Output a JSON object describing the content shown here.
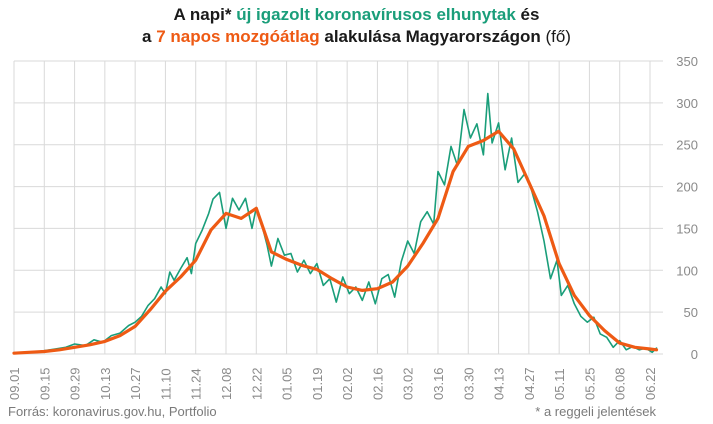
{
  "title": {
    "line1_a": "A napi* ",
    "line1_b": "új igazolt koronavírusos elhunytak",
    "line1_c": " és",
    "line2_a": "a ",
    "line2_b": "7 napos mozgóátlag",
    "line2_c": " alakulása Magyarországon",
    "line2_d": " (fő)"
  },
  "footer": {
    "source": "Forrás: koronavirus.gov.hu, Portfolio",
    "note": "* a reggeli jelentések"
  },
  "colors": {
    "daily": "#1a9e7a",
    "avg": "#ee5a14",
    "grid": "#d9d9d9",
    "tick": "#8a8a8a"
  },
  "chart_data": {
    "type": "line",
    "x_start": "2020-09-01",
    "x_end": "2021-06-25",
    "x_tick_labels": [
      "09.01",
      "09.15",
      "09.29",
      "10.13",
      "10.27",
      "11.10",
      "11.24",
      "12.08",
      "12.22",
      "01.05",
      "01.19",
      "02.02",
      "02.16",
      "03.02",
      "03.16",
      "03.30",
      "04.13",
      "04.27",
      "05.11",
      "05.25",
      "06.08",
      "06.22"
    ],
    "ylim": [
      0,
      350
    ],
    "y_ticks": [
      0,
      50,
      100,
      150,
      200,
      250,
      300,
      350
    ],
    "y_axis_side": "right",
    "grid": true,
    "series": [
      {
        "name": "új igazolt koronavírusos elhunytak",
        "style": "thin",
        "points": [
          [
            "2020-09-01",
            1
          ],
          [
            "2020-09-05",
            2
          ],
          [
            "2020-09-10",
            2
          ],
          [
            "2020-09-15",
            4
          ],
          [
            "2020-09-20",
            6
          ],
          [
            "2020-09-25",
            8
          ],
          [
            "2020-09-29",
            12
          ],
          [
            "2020-10-04",
            10
          ],
          [
            "2020-10-08",
            17
          ],
          [
            "2020-10-12",
            14
          ],
          [
            "2020-10-16",
            22
          ],
          [
            "2020-10-20",
            25
          ],
          [
            "2020-10-24",
            34
          ],
          [
            "2020-10-27",
            38
          ],
          [
            "2020-10-30",
            45
          ],
          [
            "2020-11-02",
            58
          ],
          [
            "2020-11-05",
            66
          ],
          [
            "2020-11-08",
            80
          ],
          [
            "2020-11-10",
            72
          ],
          [
            "2020-11-12",
            98
          ],
          [
            "2020-11-14",
            88
          ],
          [
            "2020-11-17",
            102
          ],
          [
            "2020-11-20",
            115
          ],
          [
            "2020-11-22",
            96
          ],
          [
            "2020-11-24",
            132
          ],
          [
            "2020-11-27",
            148
          ],
          [
            "2020-11-30",
            168
          ],
          [
            "2020-12-02",
            185
          ],
          [
            "2020-12-05",
            193
          ],
          [
            "2020-12-08",
            150
          ],
          [
            "2020-12-11",
            186
          ],
          [
            "2020-12-14",
            172
          ],
          [
            "2020-12-17",
            186
          ],
          [
            "2020-12-20",
            150
          ],
          [
            "2020-12-22",
            175
          ],
          [
            "2020-12-24",
            160
          ],
          [
            "2020-12-27",
            130
          ],
          [
            "2020-12-29",
            105
          ],
          [
            "2021-01-01",
            138
          ],
          [
            "2021-01-04",
            118
          ],
          [
            "2021-01-07",
            120
          ],
          [
            "2021-01-10",
            98
          ],
          [
            "2021-01-13",
            112
          ],
          [
            "2021-01-16",
            96
          ],
          [
            "2021-01-19",
            108
          ],
          [
            "2021-01-22",
            82
          ],
          [
            "2021-01-25",
            90
          ],
          [
            "2021-01-28",
            62
          ],
          [
            "2021-01-31",
            92
          ],
          [
            "2021-02-03",
            72
          ],
          [
            "2021-02-06",
            80
          ],
          [
            "2021-02-09",
            64
          ],
          [
            "2021-02-12",
            86
          ],
          [
            "2021-02-15",
            60
          ],
          [
            "2021-02-18",
            90
          ],
          [
            "2021-02-21",
            95
          ],
          [
            "2021-02-24",
            68
          ],
          [
            "2021-02-27",
            110
          ],
          [
            "2021-03-02",
            135
          ],
          [
            "2021-03-05",
            120
          ],
          [
            "2021-03-08",
            158
          ],
          [
            "2021-03-11",
            170
          ],
          [
            "2021-03-14",
            155
          ],
          [
            "2021-03-16",
            218
          ],
          [
            "2021-03-19",
            202
          ],
          [
            "2021-03-22",
            248
          ],
          [
            "2021-03-25",
            225
          ],
          [
            "2021-03-28",
            292
          ],
          [
            "2021-03-31",
            258
          ],
          [
            "2021-04-03",
            275
          ],
          [
            "2021-04-06",
            238
          ],
          [
            "2021-04-08",
            311
          ],
          [
            "2021-04-10",
            252
          ],
          [
            "2021-04-13",
            276
          ],
          [
            "2021-04-16",
            220
          ],
          [
            "2021-04-19",
            258
          ],
          [
            "2021-04-22",
            205
          ],
          [
            "2021-04-25",
            215
          ],
          [
            "2021-04-28",
            198
          ],
          [
            "2021-05-01",
            170
          ],
          [
            "2021-05-04",
            135
          ],
          [
            "2021-05-07",
            90
          ],
          [
            "2021-05-10",
            112
          ],
          [
            "2021-05-12",
            70
          ],
          [
            "2021-05-15",
            82
          ],
          [
            "2021-05-18",
            60
          ],
          [
            "2021-05-21",
            45
          ],
          [
            "2021-05-24",
            38
          ],
          [
            "2021-05-27",
            44
          ],
          [
            "2021-05-30",
            24
          ],
          [
            "2021-06-02",
            20
          ],
          [
            "2021-06-05",
            8
          ],
          [
            "2021-06-08",
            16
          ],
          [
            "2021-06-11",
            5
          ],
          [
            "2021-06-14",
            9
          ],
          [
            "2021-06-17",
            5
          ],
          [
            "2021-06-20",
            7
          ],
          [
            "2021-06-23",
            2
          ],
          [
            "2021-06-25",
            7
          ]
        ]
      },
      {
        "name": "7 napos mozgóátlag",
        "style": "thick",
        "points": [
          [
            "2020-09-01",
            1
          ],
          [
            "2020-09-08",
            2
          ],
          [
            "2020-09-15",
            3
          ],
          [
            "2020-09-22",
            5
          ],
          [
            "2020-09-29",
            8
          ],
          [
            "2020-10-06",
            11
          ],
          [
            "2020-10-13",
            15
          ],
          [
            "2020-10-20",
            22
          ],
          [
            "2020-10-27",
            33
          ],
          [
            "2020-11-03",
            53
          ],
          [
            "2020-11-10",
            75
          ],
          [
            "2020-11-17",
            92
          ],
          [
            "2020-11-24",
            112
          ],
          [
            "2020-12-01",
            148
          ],
          [
            "2020-12-08",
            168
          ],
          [
            "2020-12-15",
            162
          ],
          [
            "2020-12-22",
            174
          ],
          [
            "2020-12-29",
            122
          ],
          [
            "2021-01-05",
            113
          ],
          [
            "2021-01-12",
            106
          ],
          [
            "2021-01-19",
            101
          ],
          [
            "2021-01-26",
            90
          ],
          [
            "2021-02-02",
            80
          ],
          [
            "2021-02-09",
            76
          ],
          [
            "2021-02-16",
            78
          ],
          [
            "2021-02-23",
            86
          ],
          [
            "2021-03-02",
            105
          ],
          [
            "2021-03-09",
            132
          ],
          [
            "2021-03-16",
            162
          ],
          [
            "2021-03-23",
            218
          ],
          [
            "2021-03-30",
            248
          ],
          [
            "2021-04-06",
            255
          ],
          [
            "2021-04-13",
            266
          ],
          [
            "2021-04-20",
            245
          ],
          [
            "2021-04-27",
            205
          ],
          [
            "2021-05-04",
            165
          ],
          [
            "2021-05-11",
            108
          ],
          [
            "2021-05-18",
            70
          ],
          [
            "2021-05-25",
            46
          ],
          [
            "2021-06-01",
            28
          ],
          [
            "2021-06-08",
            13
          ],
          [
            "2021-06-15",
            8
          ],
          [
            "2021-06-22",
            6
          ],
          [
            "2021-06-25",
            5
          ]
        ]
      }
    ]
  }
}
